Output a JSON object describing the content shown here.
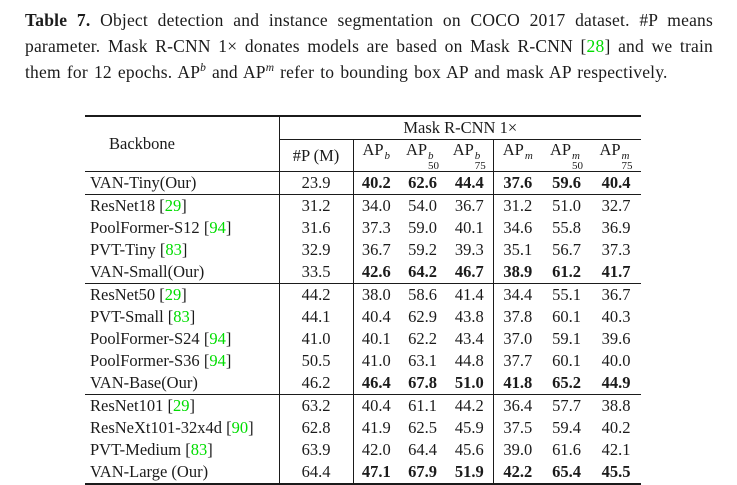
{
  "page": {
    "background": "#ffffff",
    "text_color": "#1b1b1b",
    "citation_color": "#00dd00"
  },
  "caption": {
    "segments": [
      {
        "style": "bold",
        "text": "Table 7."
      },
      {
        "style": "plain",
        "text": " Object detection and instance segmentation on COCO 2017 dataset. #P means parameter. Mask R-CNN 1× donates models are based on Mask R-CNN "
      },
      {
        "style": "cite",
        "text": "28"
      },
      {
        "style": "plain",
        "text": " and we train them for 12 epochs. AP"
      },
      {
        "style": "sup",
        "text": "b"
      },
      {
        "style": "plain",
        "text": " and AP"
      },
      {
        "style": "sup",
        "text": "m"
      },
      {
        "style": "plain",
        "text": " refer to bounding box AP and mask AP respectively."
      }
    ]
  },
  "table": {
    "backbone_header": "Backbone",
    "group_header": "Mask R-CNN 1×",
    "param_header": "#P (M)",
    "metric_headers": [
      {
        "base": "AP",
        "sup": "b",
        "sub": ""
      },
      {
        "base": "AP",
        "sup": "b",
        "sub": "50"
      },
      {
        "base": "AP",
        "sup": "b",
        "sub": "75"
      },
      {
        "base": "AP",
        "sup": "m",
        "sub": ""
      },
      {
        "base": "AP",
        "sup": "m",
        "sub": "50"
      },
      {
        "base": "AP",
        "sup": "m",
        "sub": "75"
      }
    ],
    "rows": [
      {
        "backbone": "VAN-Tiny(Our)",
        "cite": "",
        "params": "23.9",
        "values": [
          "40.2",
          "62.6",
          "44.4",
          "37.6",
          "59.6",
          "40.4"
        ],
        "bold": true,
        "group_end": true
      },
      {
        "backbone": "ResNet18",
        "cite": "29",
        "params": "31.2",
        "values": [
          "34.0",
          "54.0",
          "36.7",
          "31.2",
          "51.0",
          "32.7"
        ],
        "bold": false,
        "group_end": false
      },
      {
        "backbone": "PoolFormer-S12",
        "cite": "94",
        "params": "31.6",
        "values": [
          "37.3",
          "59.0",
          "40.1",
          "34.6",
          "55.8",
          "36.9"
        ],
        "bold": false,
        "group_end": false
      },
      {
        "backbone": "PVT-Tiny",
        "cite": "83",
        "params": "32.9",
        "values": [
          "36.7",
          "59.2",
          "39.3",
          "35.1",
          "56.7",
          "37.3"
        ],
        "bold": false,
        "group_end": false
      },
      {
        "backbone": "VAN-Small(Our)",
        "cite": "",
        "params": "33.5",
        "values": [
          "42.6",
          "64.2",
          "46.7",
          "38.9",
          "61.2",
          "41.7"
        ],
        "bold": true,
        "group_end": true
      },
      {
        "backbone": "ResNet50",
        "cite": "29",
        "params": "44.2",
        "values": [
          "38.0",
          "58.6",
          "41.4",
          "34.4",
          "55.1",
          "36.7"
        ],
        "bold": false,
        "group_end": false
      },
      {
        "backbone": "PVT-Small",
        "cite": "83",
        "params": "44.1",
        "values": [
          "40.4",
          "62.9",
          "43.8",
          "37.8",
          "60.1",
          "40.3"
        ],
        "bold": false,
        "group_end": false
      },
      {
        "backbone": "PoolFormer-S24",
        "cite": "94",
        "params": "41.0",
        "values": [
          "40.1",
          "62.2",
          "43.4",
          "37.0",
          "59.1",
          "39.6"
        ],
        "bold": false,
        "group_end": false
      },
      {
        "backbone": "PoolFormer-S36",
        "cite": "94",
        "params": "50.5",
        "values": [
          "41.0",
          "63.1",
          "44.8",
          "37.7",
          "60.1",
          "40.0"
        ],
        "bold": false,
        "group_end": false
      },
      {
        "backbone": "VAN-Base(Our)",
        "cite": "",
        "params": "46.2",
        "values": [
          "46.4",
          "67.8",
          "51.0",
          "41.8",
          "65.2",
          "44.9"
        ],
        "bold": true,
        "group_end": true
      },
      {
        "backbone": "ResNet101",
        "cite": "29",
        "params": "63.2",
        "values": [
          "40.4",
          "61.1",
          "44.2",
          "36.4",
          "57.7",
          "38.8"
        ],
        "bold": false,
        "group_end": false
      },
      {
        "backbone": "ResNeXt101-32x4d",
        "cite": "90",
        "params": "62.8",
        "values": [
          "41.9",
          "62.5",
          "45.9",
          "37.5",
          "59.4",
          "40.2"
        ],
        "bold": false,
        "group_end": false
      },
      {
        "backbone": "PVT-Medium",
        "cite": "83",
        "params": "63.9",
        "values": [
          "42.0",
          "64.4",
          "45.6",
          "39.0",
          "61.6",
          "42.1"
        ],
        "bold": false,
        "group_end": false
      },
      {
        "backbone": "VAN-Large (Our)",
        "cite": "",
        "params": "64.4",
        "values": [
          "47.1",
          "67.9",
          "51.9",
          "42.2",
          "65.4",
          "45.5"
        ],
        "bold": true,
        "group_end": true
      }
    ]
  }
}
